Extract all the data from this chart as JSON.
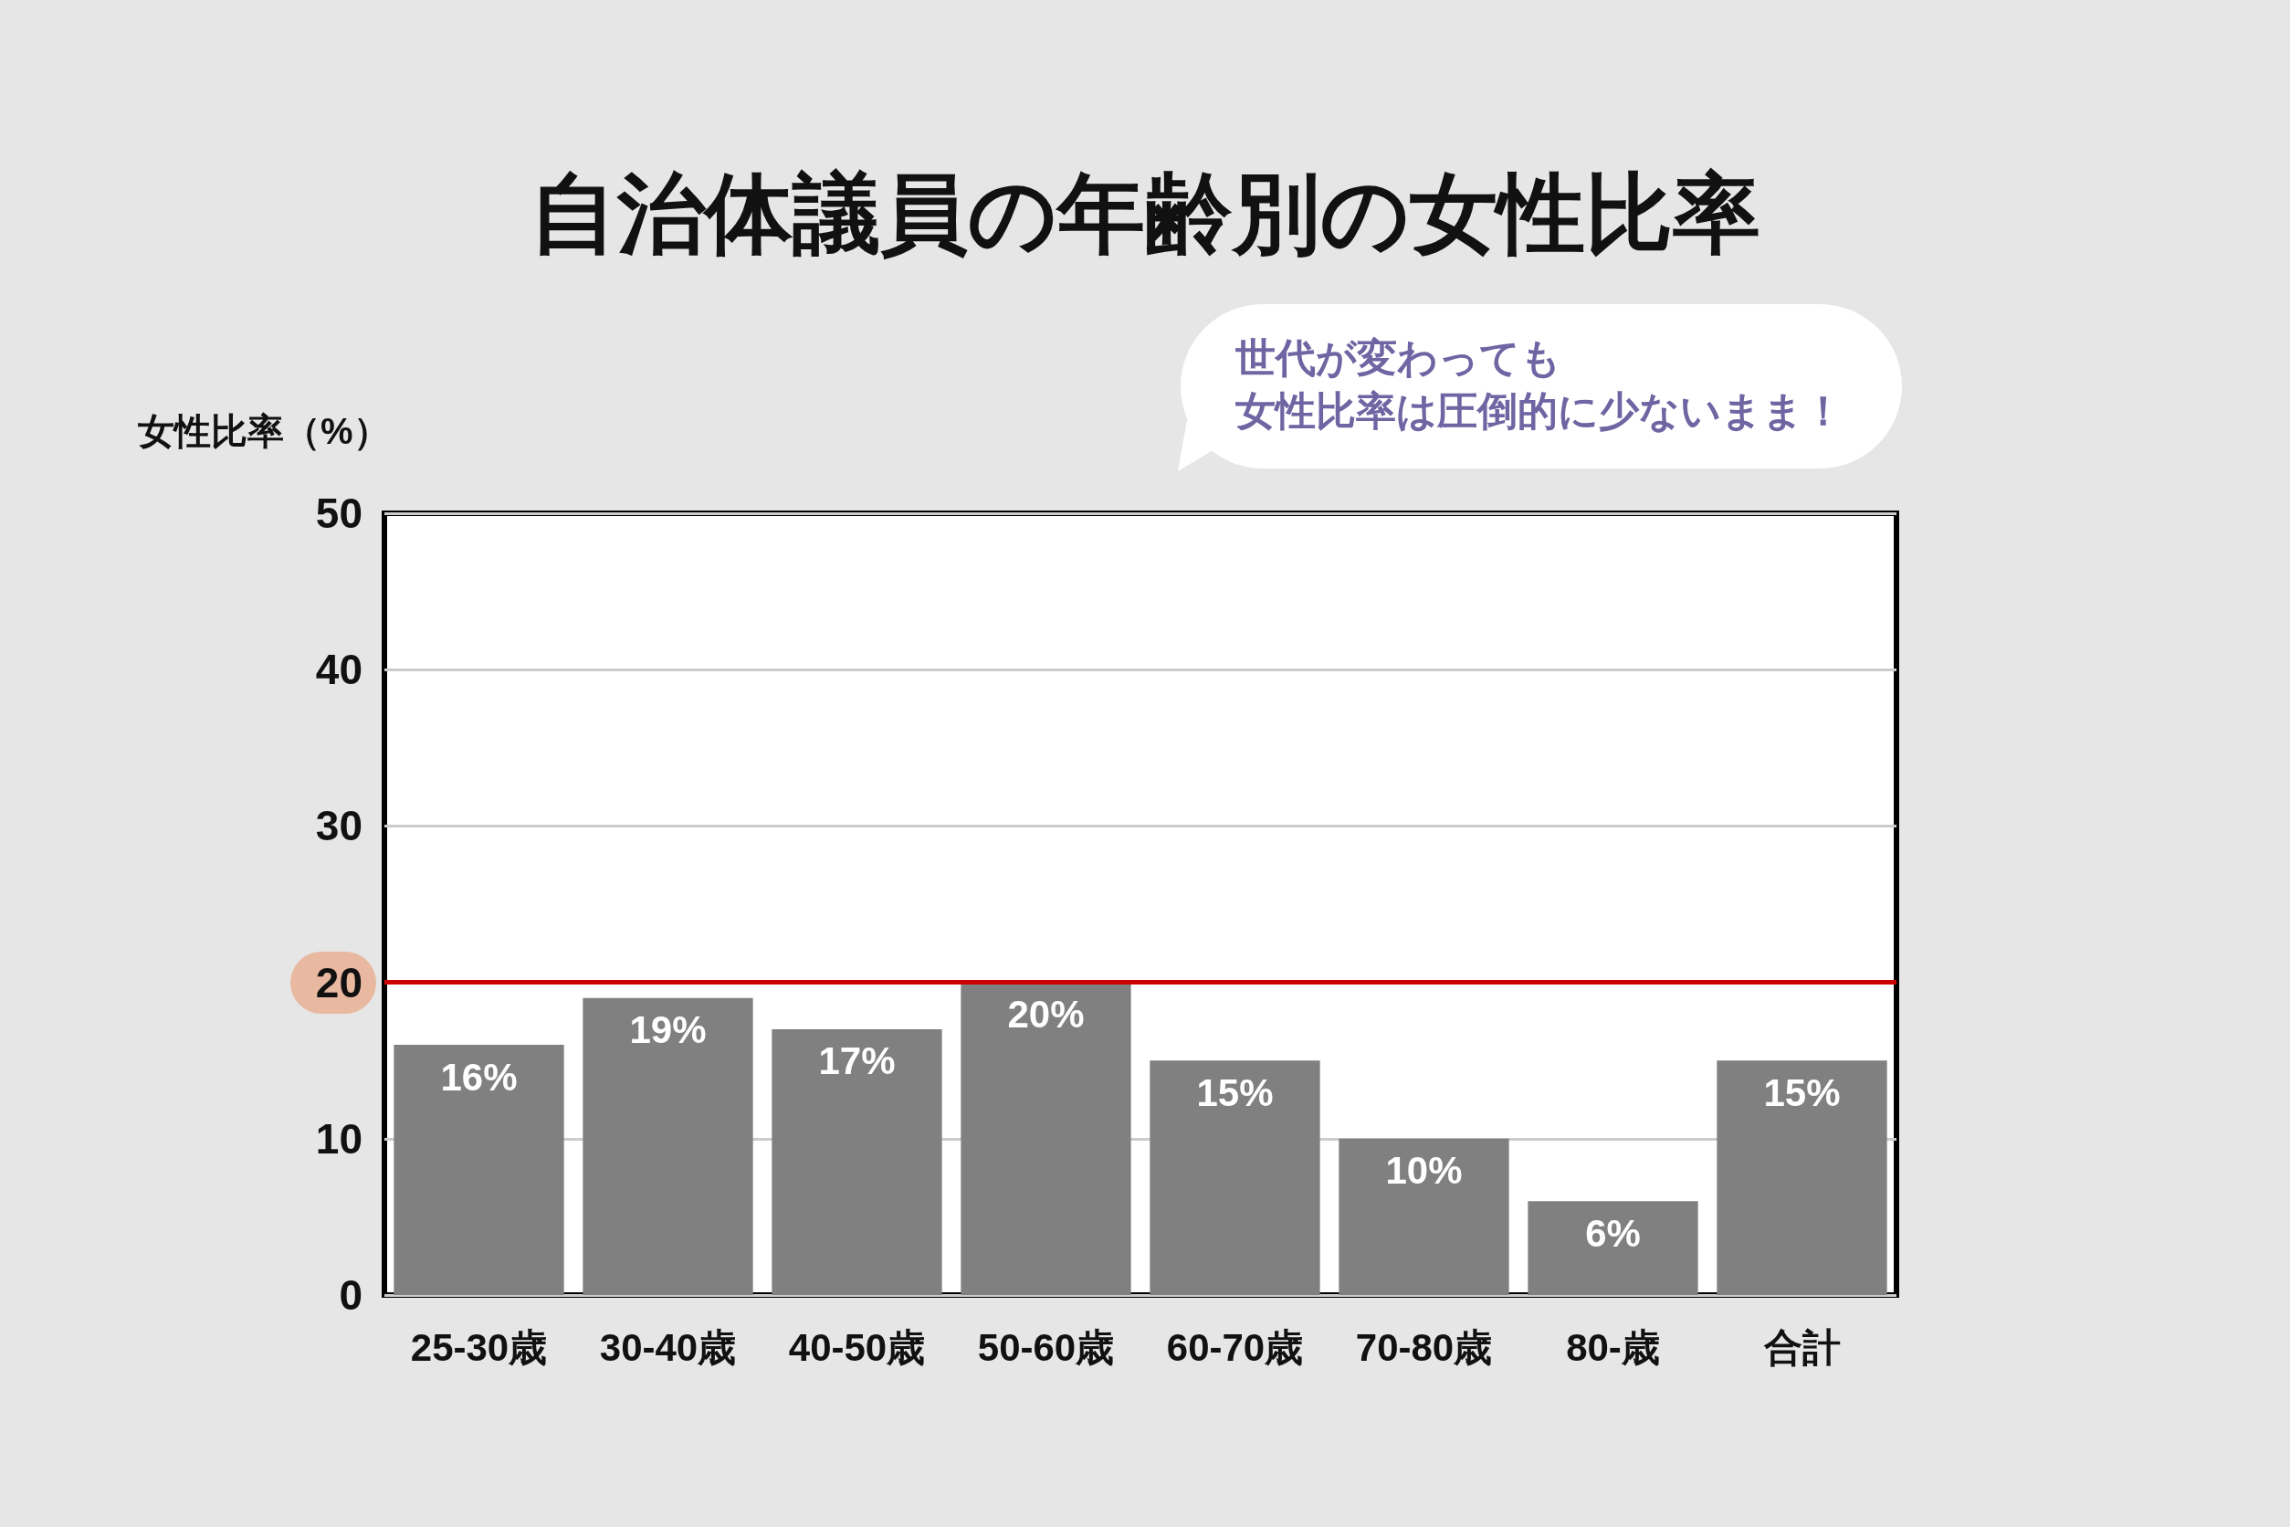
{
  "chart_data": {
    "type": "bar",
    "title": "自治体議員の年齢別の女性比率",
    "ylabel": "女性比率（%）",
    "annotations": [
      "世代が変わっても",
      "女性比率は圧倒的に少ないまま！"
    ],
    "categories": [
      "25-30歳",
      "30-40歳",
      "40-50歳",
      "50-60歳",
      "60-70歳",
      "70-80歳",
      "80-歳",
      "合計"
    ],
    "values": [
      16,
      19,
      17,
      20,
      15,
      10,
      6,
      15
    ],
    "value_labels": [
      "16%",
      "19%",
      "17%",
      "20%",
      "15%",
      "10%",
      "6%",
      "15%"
    ],
    "color": "#808080",
    "ylim": [
      0,
      50
    ],
    "yticks": [
      0,
      10,
      20,
      30,
      40,
      50
    ],
    "grid": "y",
    "ref_lines": [
      {
        "axis": "y",
        "value": 20,
        "color": "#cc0000"
      }
    ]
  }
}
